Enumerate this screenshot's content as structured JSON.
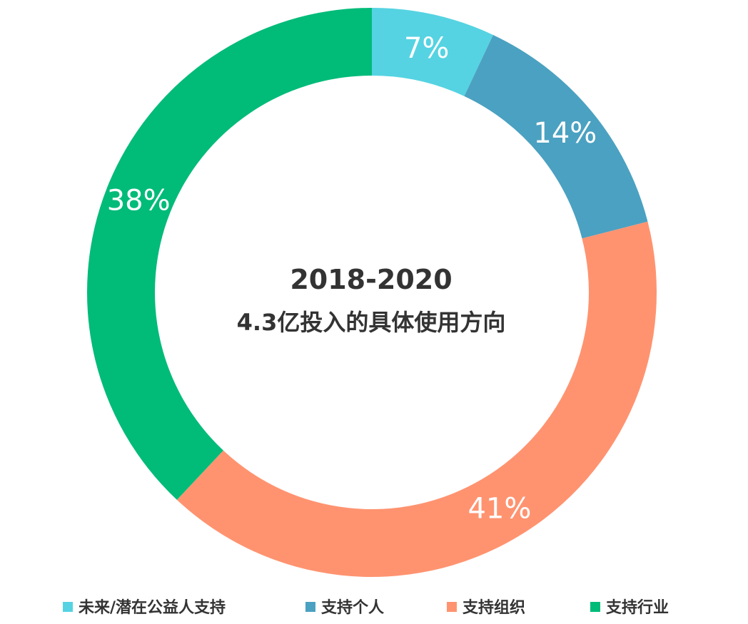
{
  "chart_data": {
    "type": "pie",
    "donut": true,
    "title": "2018-2020",
    "subtitle": "4.3亿投入的具体使用方向",
    "legend_position": "bottom",
    "slices": [
      {
        "name": "未来/潜在公益人支持",
        "value": 7,
        "label": "7%",
        "color": "#55D3E2"
      },
      {
        "name": "支持个人",
        "value": 14,
        "label": "14%",
        "color": "#4BA1C1"
      },
      {
        "name": "支持组织",
        "value": 41,
        "label": "41%",
        "color": "#FF9370"
      },
      {
        "name": "支持行业",
        "value": 38,
        "label": "38%",
        "color": "#01BB79"
      }
    ]
  }
}
